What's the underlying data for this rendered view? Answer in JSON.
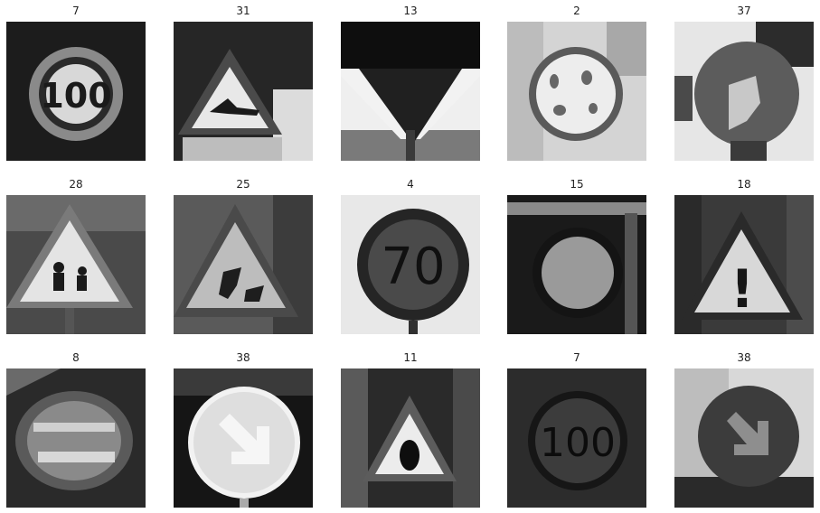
{
  "grid": {
    "rows": 3,
    "cols": 5,
    "cells": [
      {
        "label": "7",
        "icon": "speed-limit-100-sign-icon"
      },
      {
        "label": "31",
        "icon": "triangle-warning-animal-sign-icon"
      },
      {
        "label": "13",
        "icon": "yield-sign-icon"
      },
      {
        "label": "2",
        "icon": "round-sign-icon"
      },
      {
        "label": "37",
        "icon": "round-direction-sign-icon"
      },
      {
        "label": "28",
        "icon": "children-crossing-sign-icon"
      },
      {
        "label": "25",
        "icon": "road-work-sign-icon"
      },
      {
        "label": "4",
        "icon": "speed-limit-70-sign-icon",
        "sign_text": "70"
      },
      {
        "label": "15",
        "icon": "no-vehicles-sign-icon"
      },
      {
        "label": "18",
        "icon": "general-caution-sign-icon",
        "sign_text": "!"
      },
      {
        "label": "8",
        "icon": "blurry-sign-icon"
      },
      {
        "label": "38",
        "icon": "keep-right-sign-icon"
      },
      {
        "label": "11",
        "icon": "right-of-way-sign-icon"
      },
      {
        "label": "7",
        "icon": "speed-limit-100-sign-icon",
        "sign_text": "100"
      },
      {
        "label": "38",
        "icon": "keep-right-sign-icon"
      }
    ]
  }
}
